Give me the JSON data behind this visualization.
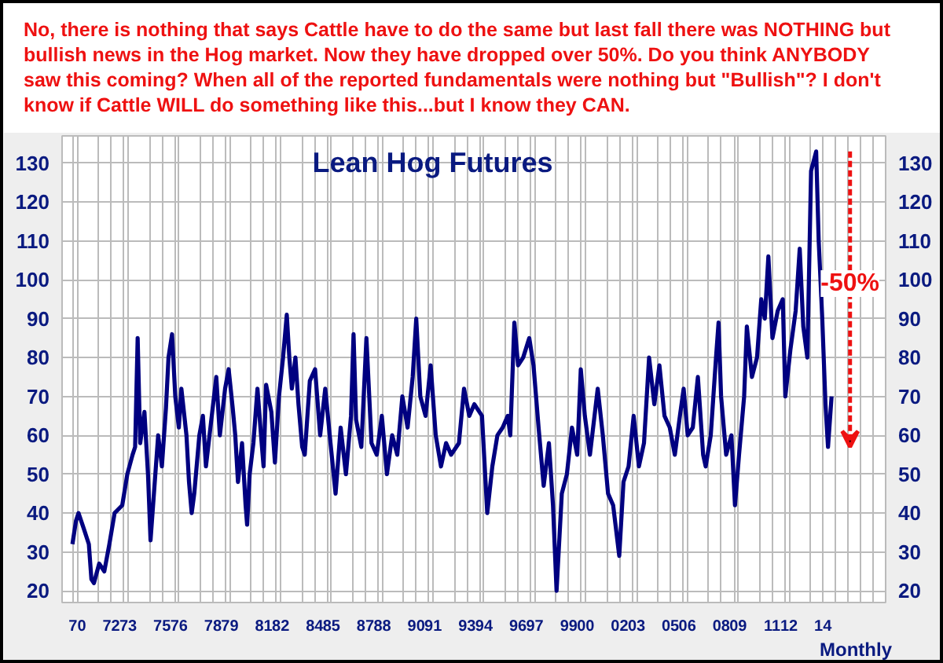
{
  "chart_data": {
    "type": "line",
    "title": "Lean Hog Futures",
    "xlabel": "Monthly",
    "annotations": [
      "No, there is nothing that says Cattle have to do the same but last fall there was NOTHING but bullish news in the Hog market. Now they have dropped over 50%. Do you think ANYBODY saw this coming? When all of the reported fundamentals were nothing but \"Bullish\"? I don't know if Cattle WILL do something like this...but I know they CAN.",
      {
        "text": "-50%",
        "x": 2015.6,
        "y": 99
      }
    ],
    "x": [
      1969.71,
      1969.92,
      1970.07,
      1970.38,
      1970.68,
      1970.83,
      1970.98,
      1971.29,
      1971.59,
      1971.89,
      1972.2,
      1972.65,
      1972.95,
      1973.26,
      1973.41,
      1973.56,
      1973.71,
      1973.96,
      1974.17,
      1974.32,
      1974.47,
      1974.77,
      1974.99,
      1975.23,
      1975.38,
      1975.59,
      1975.78,
      1975.99,
      1976.14,
      1976.44,
      1976.59,
      1976.75,
      1976.9,
      1977.2,
      1977.41,
      1977.59,
      1977.96,
      1978.2,
      1978.41,
      1978.72,
      1978.93,
      1979.17,
      1979.32,
      1979.48,
      1979.72,
      1979.93,
      1980.02,
      1980.17,
      1980.39,
      1980.63,
      1980.84,
      1980.99,
      1981.14,
      1981.45,
      1981.66,
      1981.9,
      1982.14,
      1982.36,
      1982.51,
      1982.66,
      1982.87,
      1983.05,
      1983.27,
      1983.42,
      1983.72,
      1984.03,
      1984.33,
      1984.63,
      1984.94,
      1985.24,
      1985.54,
      1985.85,
      1986.15,
      1986.3,
      1986.45,
      1986.76,
      1987.06,
      1987.36,
      1987.67,
      1987.97,
      1988.27,
      1988.58,
      1988.88,
      1989.18,
      1989.49,
      1989.79,
      1990.0,
      1990.24,
      1990.55,
      1990.85,
      1991.15,
      1991.46,
      1991.76,
      1992.06,
      1992.52,
      1992.82,
      1993.13,
      1993.43,
      1993.88,
      1994.19,
      1994.49,
      1994.79,
      1995.1,
      1995.4,
      1995.55,
      1995.79,
      1996.01,
      1996.31,
      1996.67,
      1996.92,
      1997.22,
      1997.52,
      1997.83,
      1998.07,
      1998.28,
      1998.59,
      1998.89,
      1999.19,
      1999.5,
      1999.71,
      1999.95,
      2000.25,
      2000.71,
      2001.01,
      2001.32,
      2001.62,
      2001.98,
      2002.23,
      2002.53,
      2002.83,
      2003.14,
      2003.44,
      2003.74,
      2004.05,
      2004.35,
      2004.65,
      2004.96,
      2005.26,
      2005.56,
      2005.78,
      2006.02,
      2006.32,
      2006.62,
      2006.93,
      2007.08,
      2007.38,
      2007.69,
      2007.84,
      2007.99,
      2008.29,
      2008.6,
      2008.81,
      2009.05,
      2009.35,
      2009.51,
      2009.81,
      2010.11,
      2010.36,
      2010.57,
      2010.78,
      2011.02,
      2011.33,
      2011.63,
      2011.78,
      2012.08,
      2012.39,
      2012.63,
      2012.84,
      2013.08,
      2013.3,
      2013.6,
      2013.75,
      2013.96,
      2014.15,
      2014.3,
      2014.51
    ],
    "series": [
      {
        "color": "#000080",
        "values": [
          32,
          38,
          40,
          36,
          32,
          23,
          22,
          27,
          25,
          32,
          40,
          42,
          50,
          55,
          57,
          85,
          58,
          66,
          50,
          33,
          42,
          60,
          52,
          67,
          80,
          86,
          70,
          62,
          72,
          60,
          48,
          40,
          45,
          60,
          65,
          52,
          66,
          75,
          60,
          72,
          77,
          67,
          60,
          48,
          58,
          42,
          37,
          50,
          58,
          72,
          60,
          52,
          73,
          66,
          53,
          70,
          80,
          91,
          80,
          72,
          80,
          68,
          57,
          55,
          74,
          77,
          60,
          72,
          58,
          45,
          62,
          50,
          65,
          86,
          64,
          57,
          85,
          58,
          55,
          65,
          50,
          60,
          55,
          70,
          62,
          75,
          90,
          70,
          65,
          78,
          60,
          52,
          58,
          55,
          58,
          72,
          65,
          68,
          65,
          40,
          52,
          60,
          62,
          65,
          60,
          89,
          78,
          80,
          85,
          78,
          62,
          47,
          58,
          42,
          20,
          45,
          50,
          62,
          55,
          77,
          65,
          55,
          72,
          60,
          45,
          42,
          29,
          48,
          52,
          65,
          52,
          58,
          80,
          68,
          78,
          65,
          62,
          55,
          65,
          72,
          60,
          62,
          75,
          55,
          52,
          60,
          80,
          89,
          70,
          55,
          60,
          42,
          55,
          70,
          88,
          75,
          80,
          95,
          90,
          106,
          85,
          92,
          95,
          70,
          82,
          92,
          108,
          88,
          80,
          128,
          133,
          110,
          90,
          68,
          57,
          70
        ]
      }
    ],
    "xlim": [
      1969.1,
      2017.7
    ],
    "ylim": [
      17,
      137
    ],
    "y2lim": [
      17,
      137
    ],
    "xticks": [
      {
        "value": 1970,
        "label": "70"
      },
      {
        "value": 1972,
        "label": "72"
      },
      {
        "value": 1973,
        "label": "73"
      },
      {
        "value": 1975,
        "label": "75"
      },
      {
        "value": 1976,
        "label": "76"
      },
      {
        "value": 1978,
        "label": "78"
      },
      {
        "value": 1979,
        "label": "79"
      },
      {
        "value": 1981,
        "label": "81"
      },
      {
        "value": 1982,
        "label": "82"
      },
      {
        "value": 1984,
        "label": "84"
      },
      {
        "value": 1985,
        "label": "85"
      },
      {
        "value": 1987,
        "label": "87"
      },
      {
        "value": 1988,
        "label": "88"
      },
      {
        "value": 1990,
        "label": "90"
      },
      {
        "value": 1991,
        "label": "91"
      },
      {
        "value": 1993,
        "label": "93"
      },
      {
        "value": 1994,
        "label": "94"
      },
      {
        "value": 1996,
        "label": "96"
      },
      {
        "value": 1997,
        "label": "97"
      },
      {
        "value": 1999,
        "label": "99"
      },
      {
        "value": 2000,
        "label": "00"
      },
      {
        "value": 2002,
        "label": "02"
      },
      {
        "value": 2003,
        "label": "03"
      },
      {
        "value": 2005,
        "label": "05"
      },
      {
        "value": 2006,
        "label": "06"
      },
      {
        "value": 2008,
        "label": "08"
      },
      {
        "value": 2009,
        "label": "09"
      },
      {
        "value": 2011,
        "label": "11"
      },
      {
        "value": 2012,
        "label": "12"
      },
      {
        "value": 2014,
        "label": "14"
      },
      {
        "value": 1969.75,
        "label": null
      },
      {
        "value": 1971.25,
        "label": null
      },
      {
        "value": 1972.75,
        "label": null
      },
      {
        "value": 1974.25,
        "label": null
      },
      {
        "value": 1975.75,
        "label": null
      },
      {
        "value": 1977.25,
        "label": null
      },
      {
        "value": 1978.75,
        "label": null
      },
      {
        "value": 1980.25,
        "label": null
      },
      {
        "value": 1981.75,
        "label": null
      },
      {
        "value": 1983.25,
        "label": null
      },
      {
        "value": 1984.75,
        "label": null
      },
      {
        "value": 1986.25,
        "label": null
      },
      {
        "value": 1987.75,
        "label": null
      },
      {
        "value": 1989.25,
        "label": null
      },
      {
        "value": 1990.75,
        "label": null
      },
      {
        "value": 1992.25,
        "label": null
      },
      {
        "value": 1993.75,
        "label": null
      },
      {
        "value": 1995.25,
        "label": null
      },
      {
        "value": 1996.75,
        "label": null
      },
      {
        "value": 1998.25,
        "label": null
      },
      {
        "value": 1999.75,
        "label": null
      },
      {
        "value": 2001.25,
        "label": null
      },
      {
        "value": 2002.75,
        "label": null
      },
      {
        "value": 2004.25,
        "label": null
      },
      {
        "value": 2005.75,
        "label": null
      },
      {
        "value": 2007.25,
        "label": null
      },
      {
        "value": 2008.75,
        "label": null
      },
      {
        "value": 2010.25,
        "label": null
      },
      {
        "value": 2011.75,
        "label": null
      },
      {
        "value": 2013.25,
        "label": null
      },
      {
        "value": 2014.75,
        "label": null
      },
      {
        "value": 2015.5,
        "label": null
      },
      {
        "value": 2016.25,
        "label": null
      },
      {
        "value": 2017,
        "label": null
      }
    ],
    "yticks": [
      20,
      30,
      40,
      50,
      60,
      70,
      80,
      90,
      100,
      110,
      120,
      130
    ],
    "y2ticks": [
      20,
      30,
      40,
      50,
      60,
      70,
      80,
      90,
      100,
      110,
      120,
      130
    ],
    "grid": true,
    "line_style": "solid",
    "marker": "none"
  }
}
